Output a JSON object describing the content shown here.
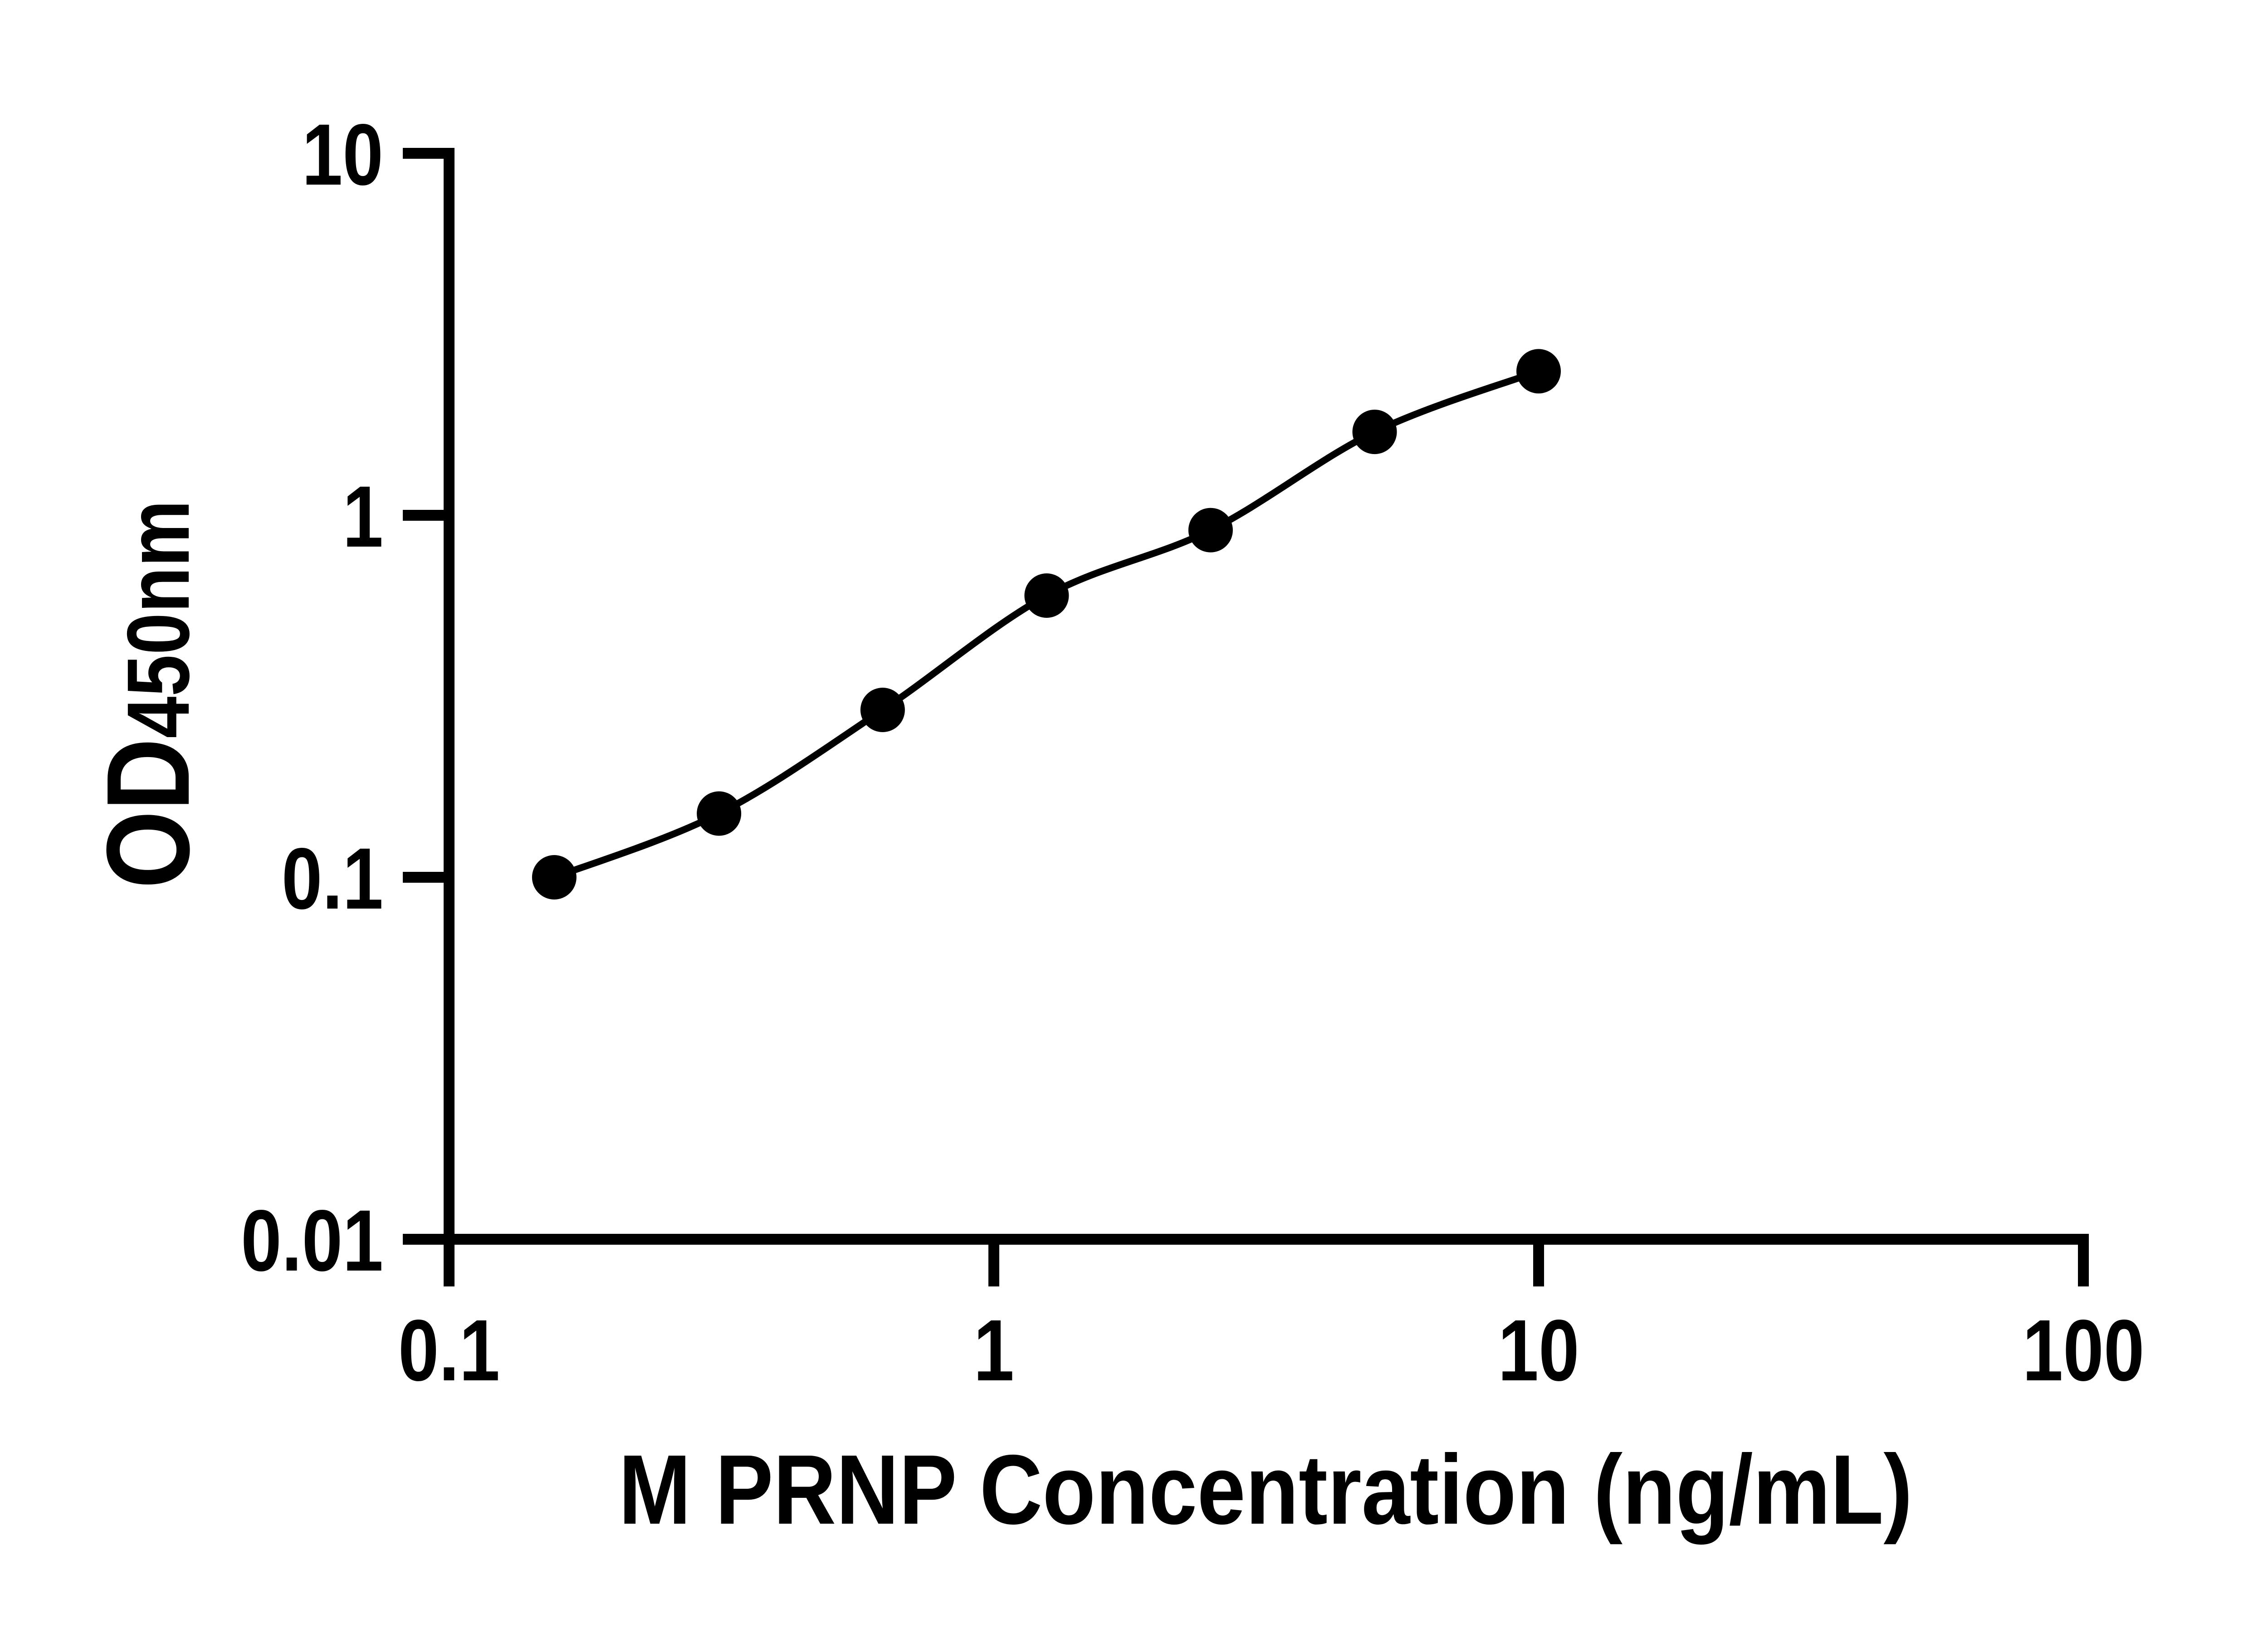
{
  "chart_data": {
    "type": "line",
    "title": "",
    "xlabel": "M PRNP Concentration (ng/mL)",
    "ylabel_main": "OD",
    "ylabel_sub": "450nm",
    "x": [
      0.156,
      0.313,
      0.625,
      1.25,
      2.5,
      5,
      10
    ],
    "y": [
      0.1,
      0.15,
      0.29,
      0.6,
      0.91,
      1.7,
      2.5
    ],
    "x_scale": "log",
    "y_scale": "log",
    "xlim": [
      0.1,
      100
    ],
    "ylim": [
      0.01,
      10
    ],
    "x_ticks": [
      "0.1",
      "1",
      "10",
      "100"
    ],
    "y_ticks": [
      "10",
      "1",
      "0.1",
      "0.01"
    ],
    "grid": false,
    "legend": "none",
    "marker": "circle",
    "marker_color": "#000000",
    "line_color": "#000000",
    "axis_color": "#000000",
    "background_color": "#ffffff"
  }
}
